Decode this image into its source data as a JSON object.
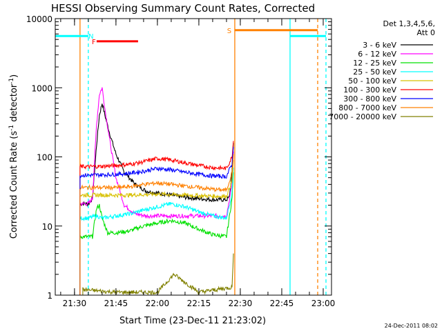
{
  "chart_data": {
    "type": "line",
    "title": "HESSI Observing Summary Count Rates, Corrected",
    "xlabel": "Start Time (23-Dec-11 21:23:02)",
    "ylabel": "Corrected Count Rate (s",
    "ylabel_sup1": "-1",
    "ylabel_mid": " detector",
    "ylabel_sup2": "-1",
    "ylabel_end": ")",
    "yscale": "log",
    "ylim": [
      1,
      10000
    ],
    "xlim": [
      "21:23:02",
      "23:03:00"
    ],
    "x_ticks": [
      "21:30",
      "21:45",
      "22:00",
      "22:15",
      "22:30",
      "22:45",
      "23:00"
    ],
    "y_ticks": [
      "1",
      "10",
      "100",
      "1000",
      "10000"
    ],
    "footer_stamp": "24-Dec-2011 08:02",
    "legend": {
      "header_line1": "Det 1,3,4,5,6,",
      "header_line2": "Att 0",
      "placement": "right"
    },
    "series": [
      {
        "name": "3 - 6 keV",
        "color": "#000000",
        "points": [
          [
            "21:32",
            21
          ],
          [
            "21:35",
            21
          ],
          [
            "21:36:30",
            25
          ],
          [
            "21:38",
            150
          ],
          [
            "21:39",
            400
          ],
          [
            "21:40",
            600
          ],
          [
            "21:41",
            400
          ],
          [
            "21:43",
            200
          ],
          [
            "21:45",
            110
          ],
          [
            "21:48",
            60
          ],
          [
            "21:52",
            40
          ],
          [
            "21:56",
            32
          ],
          [
            "22:00",
            30
          ],
          [
            "22:05",
            28
          ],
          [
            "22:10",
            26
          ],
          [
            "22:15",
            25
          ],
          [
            "22:20",
            24
          ],
          [
            "22:25",
            24
          ],
          [
            "22:26",
            26
          ],
          [
            "22:27",
            60
          ],
          [
            "22:27:30",
            160
          ]
        ]
      },
      {
        "name": "6 - 12 keV",
        "color": "#ff00ff",
        "points": [
          [
            "21:32",
            21
          ],
          [
            "21:35",
            21
          ],
          [
            "21:36:30",
            25
          ],
          [
            "21:38",
            300
          ],
          [
            "21:39",
            800
          ],
          [
            "21:40",
            1000
          ],
          [
            "21:41",
            500
          ],
          [
            "21:43",
            150
          ],
          [
            "21:45",
            50
          ],
          [
            "21:48",
            20
          ],
          [
            "21:52",
            15
          ],
          [
            "21:56",
            14
          ],
          [
            "22:00",
            14
          ],
          [
            "22:05",
            14
          ],
          [
            "22:10",
            14
          ],
          [
            "22:15",
            14
          ],
          [
            "22:20",
            14
          ],
          [
            "22:25",
            14
          ],
          [
            "22:27",
            40
          ],
          [
            "22:27:30",
            120
          ]
        ]
      },
      {
        "name": "12 - 25 keV",
        "color": "#00e000",
        "points": [
          [
            "21:32",
            7
          ],
          [
            "21:35",
            7
          ],
          [
            "21:36:30",
            7
          ],
          [
            "21:38",
            18
          ],
          [
            "21:39",
            20
          ],
          [
            "21:40",
            13
          ],
          [
            "21:42",
            8
          ],
          [
            "21:45",
            8
          ],
          [
            "21:50",
            8.5
          ],
          [
            "21:55",
            10
          ],
          [
            "22:00",
            11
          ],
          [
            "22:05",
            12
          ],
          [
            "22:10",
            11
          ],
          [
            "22:15",
            9
          ],
          [
            "22:20",
            7.5
          ],
          [
            "22:25",
            7
          ],
          [
            "22:27",
            25
          ],
          [
            "22:27:30",
            60
          ]
        ]
      },
      {
        "name": "25 - 50 keV",
        "color": "#00ffff",
        "points": [
          [
            "21:32",
            13
          ],
          [
            "21:35",
            13
          ],
          [
            "21:38",
            14
          ],
          [
            "21:40",
            13
          ],
          [
            "21:45",
            14
          ],
          [
            "21:50",
            15
          ],
          [
            "21:55",
            17
          ],
          [
            "22:00",
            19
          ],
          [
            "22:05",
            21
          ],
          [
            "22:10",
            19
          ],
          [
            "22:15",
            16
          ],
          [
            "22:20",
            14
          ],
          [
            "22:25",
            13
          ],
          [
            "22:27",
            30
          ],
          [
            "22:27:30",
            70
          ]
        ]
      },
      {
        "name": "50 - 100 keV",
        "color": "#d8c000",
        "points": [
          [
            "21:32",
            28
          ],
          [
            "21:40",
            28
          ],
          [
            "21:50",
            28
          ],
          [
            "22:00",
            29
          ],
          [
            "22:10",
            28
          ],
          [
            "22:20",
            27
          ],
          [
            "22:25",
            27
          ],
          [
            "22:27",
            45
          ],
          [
            "22:27:30",
            90
          ]
        ]
      },
      {
        "name": "100 - 300 keV",
        "color": "#ff0000",
        "points": [
          [
            "21:32",
            72
          ],
          [
            "21:40",
            73
          ],
          [
            "21:45",
            75
          ],
          [
            "21:50",
            78
          ],
          [
            "21:55",
            85
          ],
          [
            "22:00",
            95
          ],
          [
            "22:05",
            90
          ],
          [
            "22:10",
            82
          ],
          [
            "22:15",
            75
          ],
          [
            "22:20",
            70
          ],
          [
            "22:25",
            68
          ],
          [
            "22:27",
            100
          ],
          [
            "22:27:30",
            170
          ]
        ]
      },
      {
        "name": "300 - 800 keV",
        "color": "#0000ff",
        "points": [
          [
            "21:32",
            54
          ],
          [
            "21:40",
            55
          ],
          [
            "21:45",
            56
          ],
          [
            "21:50",
            58
          ],
          [
            "21:55",
            62
          ],
          [
            "22:00",
            68
          ],
          [
            "22:05",
            65
          ],
          [
            "22:10",
            60
          ],
          [
            "22:15",
            56
          ],
          [
            "22:20",
            53
          ],
          [
            "22:25",
            52
          ],
          [
            "22:27",
            80
          ],
          [
            "22:27:30",
            140
          ]
        ]
      },
      {
        "name": "800 - 7000 keV",
        "color": "#ff8000",
        "points": [
          [
            "21:32",
            36
          ],
          [
            "21:40",
            36
          ],
          [
            "21:45",
            36
          ],
          [
            "21:50",
            37
          ],
          [
            "21:55",
            40
          ],
          [
            "22:00",
            42
          ],
          [
            "22:05",
            40
          ],
          [
            "22:10",
            38
          ],
          [
            "22:15",
            36
          ],
          [
            "22:20",
            34
          ],
          [
            "22:25",
            33
          ],
          [
            "22:27",
            60
          ],
          [
            "22:27:30",
            110
          ]
        ]
      },
      {
        "name": "7000 - 20000 keV",
        "color": "#808000",
        "points": [
          [
            "21:33",
            1.2
          ],
          [
            "21:45",
            1.1
          ],
          [
            "22:00",
            1.1
          ],
          [
            "22:06",
            2
          ],
          [
            "22:15",
            1.1
          ],
          [
            "22:27",
            1.3
          ],
          [
            "22:27:30",
            4
          ]
        ]
      }
    ],
    "flag_bars": [
      {
        "label": "N",
        "color": "#00ffff",
        "level": 5600,
        "segments": [
          [
            "21:23:02",
            "21:35"
          ],
          [
            "22:48",
            "23:01"
          ]
        ],
        "label_at": "21:36"
      },
      {
        "label": "F",
        "color": "#ff0000",
        "level": 4700,
        "segments": [
          [
            "21:38",
            "21:53"
          ]
        ],
        "label_at": "21:37"
      },
      {
        "label": "S",
        "color": "#ff8000",
        "level": 6800,
        "segments": [
          [
            "22:28",
            "22:58"
          ]
        ],
        "label_at": "22:26"
      }
    ],
    "vertical_markers": [
      {
        "at": "21:35",
        "color": "#00ffff",
        "style": "dashed"
      },
      {
        "at": "22:48",
        "color": "#00ffff",
        "style": "solid"
      },
      {
        "at": "23:01",
        "color": "#00ffff",
        "style": "dashed"
      },
      {
        "at": "22:28",
        "color": "#ff8000",
        "style": "solid"
      },
      {
        "at": "22:58",
        "color": "#ff8000",
        "style": "dashed"
      },
      {
        "at": "21:32",
        "color": "#ff8000",
        "style": "solid"
      }
    ]
  }
}
